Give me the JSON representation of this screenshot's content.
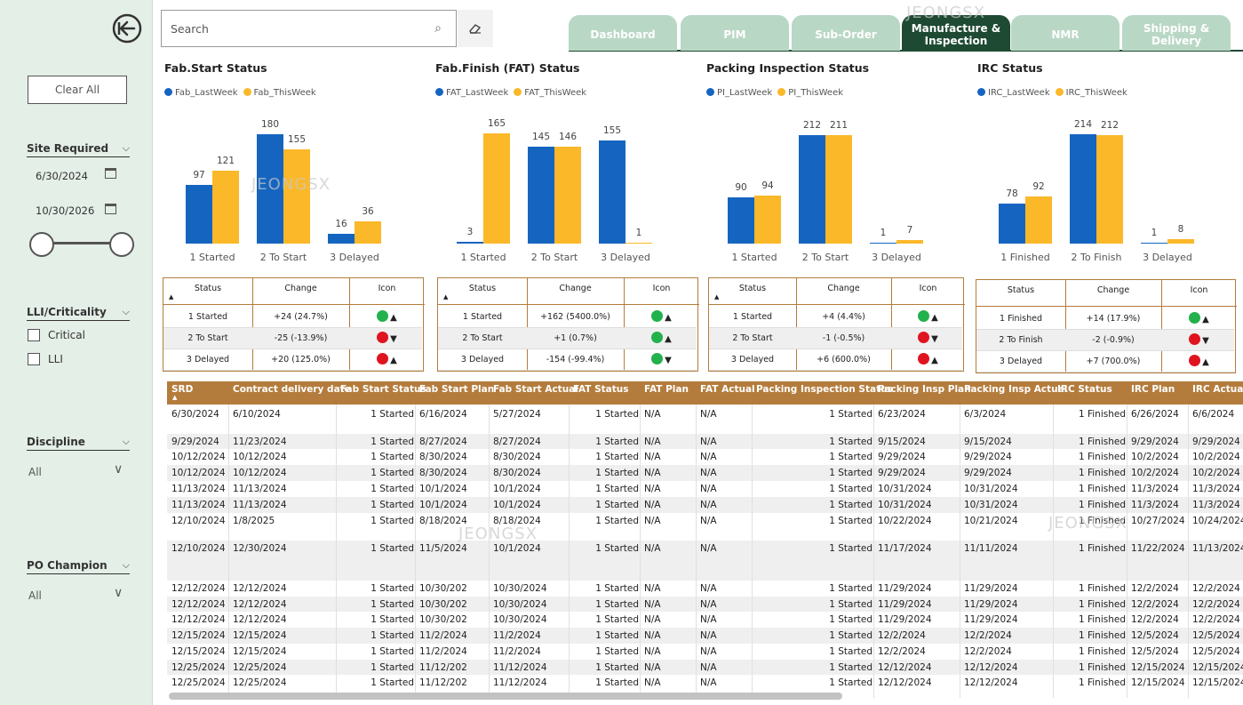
{
  "sidebar": {
    "clear_all": "Clear All",
    "site_required": {
      "title": "Site Required",
      "start": "6/30/2024",
      "end": "10/30/2026"
    },
    "lli": {
      "title": "LLI/Criticality",
      "options": [
        "Critical",
        "LLI"
      ]
    },
    "discipline": {
      "title": "Discipline",
      "value": "All"
    },
    "po_champion": {
      "title": "PO Champion",
      "value": "All"
    }
  },
  "search": {
    "placeholder": "Search"
  },
  "tabs": [
    {
      "label": "Dashboard"
    },
    {
      "label": "PIM"
    },
    {
      "label": "Sub-Order"
    },
    {
      "label": "Manufacture & Inspection",
      "active": true
    },
    {
      "label": "NMR"
    },
    {
      "label": "Shipping & Delivery"
    }
  ],
  "watermark": "JEONGSX",
  "colors": {
    "last_week": "#1565c0",
    "this_week": "#fbb829",
    "accent": "#b47c3c",
    "tab_active": "#1e4a33",
    "tab": "#b9d7c5",
    "green": "#22b14c",
    "red": "#e0141e"
  },
  "chart_data": [
    {
      "type": "bar",
      "title": "Fab.Start Status",
      "legend": [
        "Fab_LastWeek",
        "Fab_ThisWeek"
      ],
      "categories": [
        "1 Started",
        "2 To Start",
        "3 Delayed"
      ],
      "series": [
        {
          "name": "Fab_LastWeek",
          "values": [
            97,
            180,
            16
          ]
        },
        {
          "name": "Fab_ThisWeek",
          "values": [
            121,
            155,
            36
          ]
        }
      ],
      "ylim": [
        0,
        220
      ]
    },
    {
      "type": "bar",
      "title": "Fab.Finish (FAT) Status",
      "legend": [
        "FAT_LastWeek",
        "FAT_ThisWeek"
      ],
      "categories": [
        "1 Started",
        "2 To Start",
        "3 Delayed"
      ],
      "series": [
        {
          "name": "FAT_LastWeek",
          "values": [
            3,
            145,
            155
          ]
        },
        {
          "name": "FAT_ThisWeek",
          "values": [
            165,
            146,
            1
          ]
        }
      ],
      "ylim": [
        0,
        200
      ]
    },
    {
      "type": "bar",
      "title": "Packing Inspection Status",
      "legend": [
        "PI_LastWeek",
        "PI_ThisWeek"
      ],
      "categories": [
        "1 Started",
        "2 To Start",
        "3 Delayed"
      ],
      "series": [
        {
          "name": "PI_LastWeek",
          "values": [
            90,
            212,
            1
          ]
        },
        {
          "name": "PI_ThisWeek",
          "values": [
            94,
            211,
            7
          ]
        }
      ],
      "ylim": [
        0,
        260
      ]
    },
    {
      "type": "bar",
      "title": "IRC Status",
      "legend": [
        "IRC_LastWeek",
        "IRC_ThisWeek"
      ],
      "categories": [
        "1 Finished",
        "2 To Finish",
        "3 Delayed"
      ],
      "series": [
        {
          "name": "IRC_LastWeek",
          "values": [
            78,
            214,
            1
          ]
        },
        {
          "name": "IRC_ThisWeek",
          "values": [
            92,
            212,
            8
          ]
        }
      ],
      "ylim": [
        0,
        260
      ]
    }
  ],
  "status_tables": [
    {
      "headers": [
        "Status",
        "Change",
        "Icon"
      ],
      "rows": [
        {
          "status": "1 Started",
          "change": "+24 (24.7%)",
          "dot": "green",
          "arrow": "▲"
        },
        {
          "status": "2 To Start",
          "change": "-25 (-13.9%)",
          "dot": "red",
          "arrow": "▼"
        },
        {
          "status": "3 Delayed",
          "change": "+20 (125.0%)",
          "dot": "red",
          "arrow": "▲"
        }
      ]
    },
    {
      "headers": [
        "Status",
        "Change",
        "Icon"
      ],
      "rows": [
        {
          "status": "1 Started",
          "change": "+162 (5400.0%)",
          "dot": "green",
          "arrow": "▲"
        },
        {
          "status": "2 To Start",
          "change": "+1 (0.7%)",
          "dot": "green",
          "arrow": "▲"
        },
        {
          "status": "3 Delayed",
          "change": "-154 (-99.4%)",
          "dot": "green",
          "arrow": "▼"
        }
      ]
    },
    {
      "headers": [
        "Status",
        "Change",
        "Icon"
      ],
      "rows": [
        {
          "status": "1 Started",
          "change": "+4 (4.4%)",
          "dot": "green",
          "arrow": "▲"
        },
        {
          "status": "2 To Start",
          "change": "-1 (-0.5%)",
          "dot": "red",
          "arrow": "▼"
        },
        {
          "status": "3 Delayed",
          "change": "+6 (600.0%)",
          "dot": "red",
          "arrow": "▲"
        }
      ]
    },
    {
      "headers": [
        "Status",
        "Change",
        "Icon"
      ],
      "rows": [
        {
          "status": "1 Finished",
          "change": "+14 (17.9%)",
          "dot": "green",
          "arrow": "▲"
        },
        {
          "status": "2 To Finish",
          "change": "-2 (-0.9%)",
          "dot": "red",
          "arrow": "▼"
        },
        {
          "status": "3 Delayed",
          "change": "+7 (700.0%)",
          "dot": "red",
          "arrow": "▲"
        }
      ]
    }
  ],
  "main_table": {
    "headers": [
      "SRD",
      "Contract delivery date",
      "Fab Start Status",
      "Fab Start Plan",
      "Fab Start Actual",
      "FAT Status",
      "FAT Plan",
      "FAT Actual",
      "Packing Inspection Status",
      "Packing Insp Plan",
      "Packing Insp Actual",
      "IRC Status",
      "IRC Plan",
      "IRC Actual"
    ],
    "rows": [
      [
        "6/30/2024",
        "6/10/2024",
        "1 Started",
        "6/16/2024",
        "5/27/2024",
        "1 Started",
        "N/A",
        "N/A",
        "1 Started",
        "6/23/2024",
        "6/3/2024",
        "1 Finished",
        "6/26/2024",
        "6/6/2024"
      ],
      [
        "9/29/2024",
        "11/23/2024",
        "1 Started",
        "8/27/2024",
        "8/27/2024",
        "1 Started",
        "N/A",
        "N/A",
        "1 Started",
        "9/15/2024",
        "9/15/2024",
        "1 Finished",
        "9/29/2024",
        "9/29/2024"
      ],
      [
        "10/12/2024",
        "10/12/2024",
        "1 Started",
        "8/30/2024",
        "8/30/2024",
        "1 Started",
        "N/A",
        "N/A",
        "1 Started",
        "9/29/2024",
        "9/29/2024",
        "1 Finished",
        "10/2/2024",
        "10/2/2024"
      ],
      [
        "10/12/2024",
        "10/12/2024",
        "1 Started",
        "8/30/2024",
        "8/30/2024",
        "1 Started",
        "N/A",
        "N/A",
        "1 Started",
        "9/29/2024",
        "9/29/2024",
        "1 Finished",
        "10/2/2024",
        "10/2/2024"
      ],
      [
        "11/13/2024",
        "11/13/2024",
        "1 Started",
        "10/1/2024",
        "10/1/2024",
        "1 Started",
        "N/A",
        "N/A",
        "1 Started",
        "10/31/2024",
        "10/31/2024",
        "1 Finished",
        "11/3/2024",
        "11/3/2024"
      ],
      [
        "11/13/2024",
        "11/13/2024",
        "1 Started",
        "10/1/2024",
        "10/1/2024",
        "1 Started",
        "N/A",
        "N/A",
        "1 Started",
        "10/31/2024",
        "10/31/2024",
        "1 Finished",
        "11/3/2024",
        "11/3/2024"
      ],
      [
        "12/10/2024",
        "1/8/2025",
        "1 Started",
        "8/18/2024",
        "8/18/2024",
        "1 Started",
        "N/A",
        "N/A",
        "1 Started",
        "10/22/2024",
        "10/21/2024",
        "1 Finished",
        "10/27/2024",
        "10/24/2024"
      ],
      [
        "12/10/2024",
        "12/30/2024",
        "1 Started",
        "11/5/2024",
        "10/1/2024",
        "1 Started",
        "N/A",
        "N/A",
        "1 Started",
        "11/17/2024",
        "11/11/2024",
        "1 Finished",
        "11/22/2024",
        "11/13/2024"
      ],
      [
        "12/12/2024",
        "12/12/2024",
        "1 Started",
        "10/30/202",
        "10/30/2024",
        "1 Started",
        "N/A",
        "N/A",
        "1 Started",
        "11/29/2024",
        "11/29/2024",
        "1 Finished",
        "12/2/2024",
        "12/2/2024"
      ],
      [
        "12/12/2024",
        "12/12/2024",
        "1 Started",
        "10/30/202",
        "10/30/2024",
        "1 Started",
        "N/A",
        "N/A",
        "1 Started",
        "11/29/2024",
        "11/29/2024",
        "1 Finished",
        "12/2/2024",
        "12/2/2024"
      ],
      [
        "12/12/2024",
        "12/12/2024",
        "1 Started",
        "10/30/202",
        "10/30/2024",
        "1 Started",
        "N/A",
        "N/A",
        "1 Started",
        "11/29/2024",
        "11/29/2024",
        "1 Finished",
        "12/2/2024",
        "12/2/2024"
      ],
      [
        "12/15/2024",
        "12/15/2024",
        "1 Started",
        "11/2/2024",
        "11/2/2024",
        "1 Started",
        "N/A",
        "N/A",
        "1 Started",
        "12/2/2024",
        "12/2/2024",
        "1 Finished",
        "12/5/2024",
        "12/5/2024"
      ],
      [
        "12/15/2024",
        "12/15/2024",
        "1 Started",
        "11/2/2024",
        "11/2/2024",
        "1 Started",
        "N/A",
        "N/A",
        "1 Started",
        "12/2/2024",
        "12/2/2024",
        "1 Finished",
        "12/5/2024",
        "12/5/2024"
      ],
      [
        "12/25/2024",
        "12/25/2024",
        "1 Started",
        "11/12/202",
        "11/12/2024",
        "1 Started",
        "N/A",
        "N/A",
        "1 Started",
        "12/12/2024",
        "12/12/2024",
        "1 Finished",
        "12/15/2024",
        "12/15/2024"
      ],
      [
        "12/25/2024",
        "12/25/2024",
        "1 Started",
        "11/12/202",
        "11/12/2024",
        "1 Started",
        "N/A",
        "N/A",
        "1 Started",
        "12/12/2024",
        "12/12/2024",
        "1 Finished",
        "12/15/2024",
        "12/15/2024"
      ]
    ]
  }
}
